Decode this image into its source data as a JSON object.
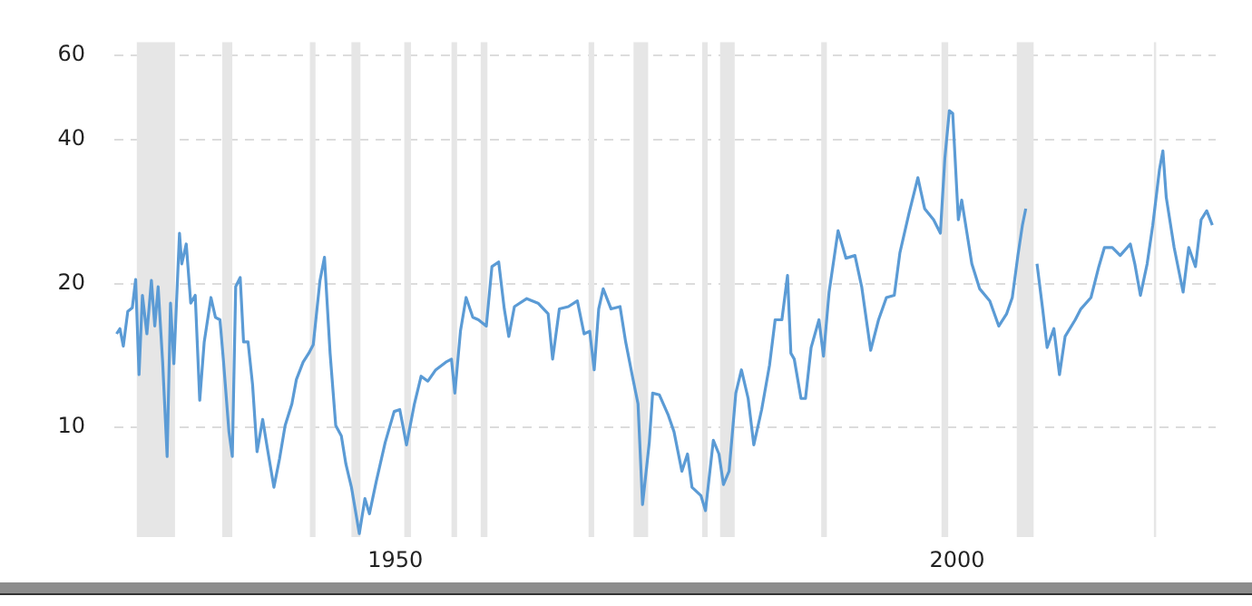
{
  "chart_data": {
    "type": "line",
    "log": "y",
    "grid": "y",
    "legend": false,
    "marker": "none",
    "line_style": "solid",
    "xlim": [
      1925,
      2023
    ],
    "xticks": [
      1950,
      2000
    ],
    "ylim": [
      5.9,
      64
    ],
    "yticks": [
      10,
      20,
      40,
      60
    ],
    "bands": [
      {
        "axis": "x",
        "from": 1927.0,
        "to": 1930.4,
        "color": "#e6e6e6"
      },
      {
        "axis": "x",
        "from": 1934.6,
        "to": 1935.5,
        "color": "#e6e6e6"
      },
      {
        "axis": "x",
        "from": 1942.4,
        "to": 1942.9,
        "color": "#e6e6e6"
      },
      {
        "axis": "x",
        "from": 1946.1,
        "to": 1946.9,
        "color": "#e6e6e6"
      },
      {
        "axis": "x",
        "from": 1950.8,
        "to": 1951.4,
        "color": "#e6e6e6"
      },
      {
        "axis": "x",
        "from": 1955.0,
        "to": 1955.5,
        "color": "#e6e6e6"
      },
      {
        "axis": "x",
        "from": 1957.6,
        "to": 1958.2,
        "color": "#e6e6e6"
      },
      {
        "axis": "x",
        "from": 1967.2,
        "to": 1967.7,
        "color": "#e6e6e6"
      },
      {
        "axis": "x",
        "from": 1971.2,
        "to": 1972.5,
        "color": "#e6e6e6"
      },
      {
        "axis": "x",
        "from": 1977.3,
        "to": 1977.8,
        "color": "#e6e6e6"
      },
      {
        "axis": "x",
        "from": 1978.9,
        "to": 1980.2,
        "color": "#e6e6e6"
      },
      {
        "axis": "x",
        "from": 1987.9,
        "to": 1988.4,
        "color": "#e6e6e6"
      },
      {
        "axis": "x",
        "from": 1998.6,
        "to": 1999.2,
        "color": "#e6e6e6"
      },
      {
        "axis": "x",
        "from": 2005.3,
        "to": 2006.8,
        "color": "#e6e6e6"
      },
      {
        "axis": "x",
        "from": 2017.5,
        "to": 2017.7,
        "color": "#e6e6e6"
      }
    ],
    "series": [
      {
        "color": "#5b9bd5",
        "x": [
          1925.2,
          1925.5,
          1925.8,
          1926.2,
          1926.6,
          1926.9,
          1927.2,
          1927.5,
          1927.9,
          1928.3,
          1928.6,
          1928.9,
          1929.3,
          1929.7,
          1930.0,
          1930.3,
          1930.8,
          1931.0,
          1931.4,
          1931.8,
          1932.2,
          1932.6,
          1933.0,
          1933.6,
          1934.0,
          1934.4,
          1934.7,
          1935.2,
          1935.5,
          1935.8,
          1936.2,
          1936.5,
          1936.9,
          1937.3,
          1937.7,
          1938.2,
          1938.6,
          1939.2,
          1939.7,
          1940.2,
          1940.8,
          1941.2,
          1941.8,
          1942.3,
          1942.7,
          1943.3,
          1943.7,
          1944.2,
          1944.7,
          1945.2,
          1945.6,
          1946.1,
          1946.8,
          1947.3,
          1947.7,
          1948.3,
          1949.1,
          1949.9,
          1950.4,
          1951.0,
          1951.7,
          1952.3,
          1952.9,
          1953.6,
          1954.5,
          1955.0,
          1955.3,
          1955.8,
          1956.3,
          1956.9,
          1957.4,
          1958.1,
          1958.6,
          1959.2,
          1959.7,
          1960.1,
          1960.6,
          1961.7,
          1962.7,
          1963.6,
          1964.0,
          1964.6,
          1965.4,
          1966.2,
          1966.8,
          1967.3,
          1967.7,
          1968.1,
          1968.5,
          1969.2,
          1970.0,
          1970.5,
          1971.1,
          1971.6,
          1972.0,
          1972.6,
          1972.9,
          1973.5,
          1974.3,
          1974.8,
          1975.5,
          1976.0,
          1976.4,
          1977.2,
          1977.6,
          1978.3,
          1978.8,
          1979.2,
          1979.7,
          1980.3,
          1980.8,
          1981.4,
          1981.9,
          1982.6,
          1983.3,
          1983.8,
          1984.4,
          1984.9,
          1985.2,
          1985.5,
          1986.1,
          1986.5,
          1987.0,
          1987.7,
          1988.1,
          1988.6,
          1989.4,
          1990.1,
          1990.9,
          1991.5,
          1992.3,
          1993.0,
          1993.7,
          1994.4,
          1994.9,
          1995.7,
          1996.5,
          1997.1,
          1997.9,
          1998.5,
          1998.9,
          1999.3,
          1999.6,
          2000.1,
          2000.4,
          2001.3,
          2002.0,
          2002.9,
          2003.7,
          2004.4,
          2004.9,
          2005.4,
          2005.8,
          2006.1,
          2006.3,
          2007.0,
          2007.1,
          2007.6,
          2008.0,
          2008.6,
          2009.1,
          2009.6,
          2010.5,
          2011.0,
          2011.9,
          2012.6,
          2013.1,
          2013.8,
          2014.5,
          2015.4,
          2015.8,
          2016.3,
          2016.9,
          2017.4,
          2018.0,
          2018.3,
          2018.6,
          2019.3,
          2020.1,
          2020.6,
          2021.2,
          2021.7,
          2022.2,
          2022.7
        ],
        "values": [
          15.7,
          16.1,
          14.8,
          17.5,
          17.8,
          20.4,
          12.9,
          18.9,
          15.7,
          20.3,
          16.3,
          19.7,
          13.7,
          8.7,
          18.2,
          13.6,
          25.5,
          22.0,
          24.2,
          18.2,
          18.9,
          11.4,
          15.1,
          18.7,
          17.0,
          16.8,
          13.9,
          9.8,
          8.7,
          19.7,
          20.6,
          15.1,
          15.1,
          12.3,
          8.9,
          10.4,
          9.1,
          7.5,
          8.6,
          10.1,
          11.2,
          12.6,
          13.7,
          14.3,
          14.9,
          20.3,
          22.7,
          14.3,
          10.1,
          9.6,
          8.4,
          7.5,
          6.0,
          7.1,
          6.6,
          7.7,
          9.3,
          10.8,
          10.9,
          9.2,
          11.2,
          12.8,
          12.5,
          13.2,
          13.7,
          13.9,
          11.8,
          15.9,
          18.7,
          17.0,
          16.8,
          16.3,
          21.7,
          22.2,
          17.7,
          15.5,
          17.9,
          18.6,
          18.2,
          17.3,
          13.9,
          17.7,
          17.9,
          18.4,
          15.7,
          15.9,
          13.2,
          17.7,
          19.5,
          17.7,
          17.9,
          15.1,
          12.8,
          11.2,
          6.9,
          9.3,
          11.8,
          11.7,
          10.6,
          9.8,
          8.1,
          8.8,
          7.5,
          7.2,
          6.7,
          9.4,
          8.8,
          7.6,
          8.1,
          11.8,
          13.2,
          11.5,
          9.2,
          10.9,
          13.5,
          16.8,
          16.8,
          20.8,
          14.3,
          13.9,
          11.5,
          11.5,
          14.7,
          16.8,
          14.1,
          19.2,
          25.8,
          22.6,
          22.9,
          19.7,
          14.5,
          16.8,
          18.7,
          18.9,
          23.2,
          28.0,
          33.3,
          28.7,
          27.2,
          25.5,
          36.6,
          46.0,
          45.4,
          27.2,
          29.9,
          22.0,
          19.5,
          18.4,
          16.3,
          17.3,
          18.7,
          22.9,
          26.5,
          28.7,
          null,
          null,
          22.0,
          17.7,
          14.7,
          16.1,
          12.9,
          15.5,
          16.8,
          17.7,
          18.7,
          21.7,
          23.8,
          23.8,
          22.9,
          24.2,
          22.0,
          18.9,
          22.0,
          26.5,
          34.7,
          37.9,
          30.3,
          23.8,
          19.2,
          23.8,
          21.7,
          27.2,
          28.4,
          26.5
        ]
      }
    ]
  }
}
